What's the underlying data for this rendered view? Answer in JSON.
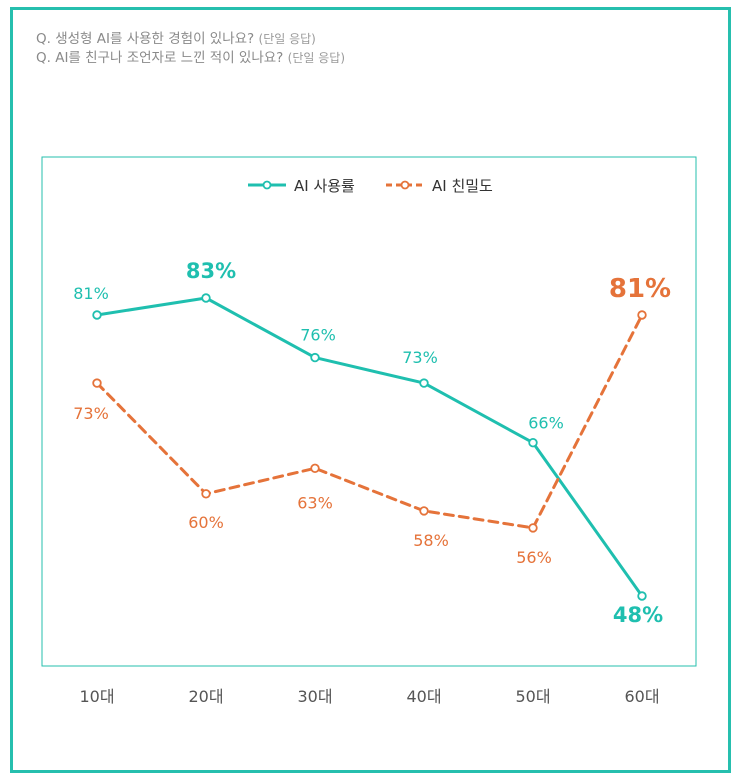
{
  "questions": [
    {
      "text": "Q. 생성형 AI를 사용한 경험이 있나요?",
      "note": "(단일 응답)"
    },
    {
      "text": "Q. AI를 친구나 조언자로 느낀 적이 있나요?",
      "note": "(단일 응답)"
    }
  ],
  "colors": {
    "frame": "#26bfae",
    "usage": "#1fbfaf",
    "intimacy": "#e5733a",
    "tick": "#555555"
  },
  "chart_data": {
    "type": "line",
    "title": "",
    "categories": [
      "10대",
      "20대",
      "30대",
      "40대",
      "50대",
      "60대"
    ],
    "ylim": [
      40,
      90
    ],
    "legend_position": "top-center",
    "series": [
      {
        "name": "AI 사용률",
        "style": "solid",
        "values": [
          81,
          83,
          76,
          73,
          66,
          48
        ],
        "labels": [
          "81%",
          "83%",
          "76%",
          "73%",
          "66%",
          "48%"
        ],
        "highlight": [
          false,
          true,
          false,
          false,
          false,
          true
        ]
      },
      {
        "name": "AI 친밀도",
        "style": "dashed",
        "values": [
          73,
          60,
          63,
          58,
          56,
          81
        ],
        "labels": [
          "73%",
          "60%",
          "63%",
          "58%",
          "56%",
          "81%"
        ],
        "highlight": [
          false,
          false,
          false,
          false,
          false,
          true
        ]
      }
    ]
  }
}
